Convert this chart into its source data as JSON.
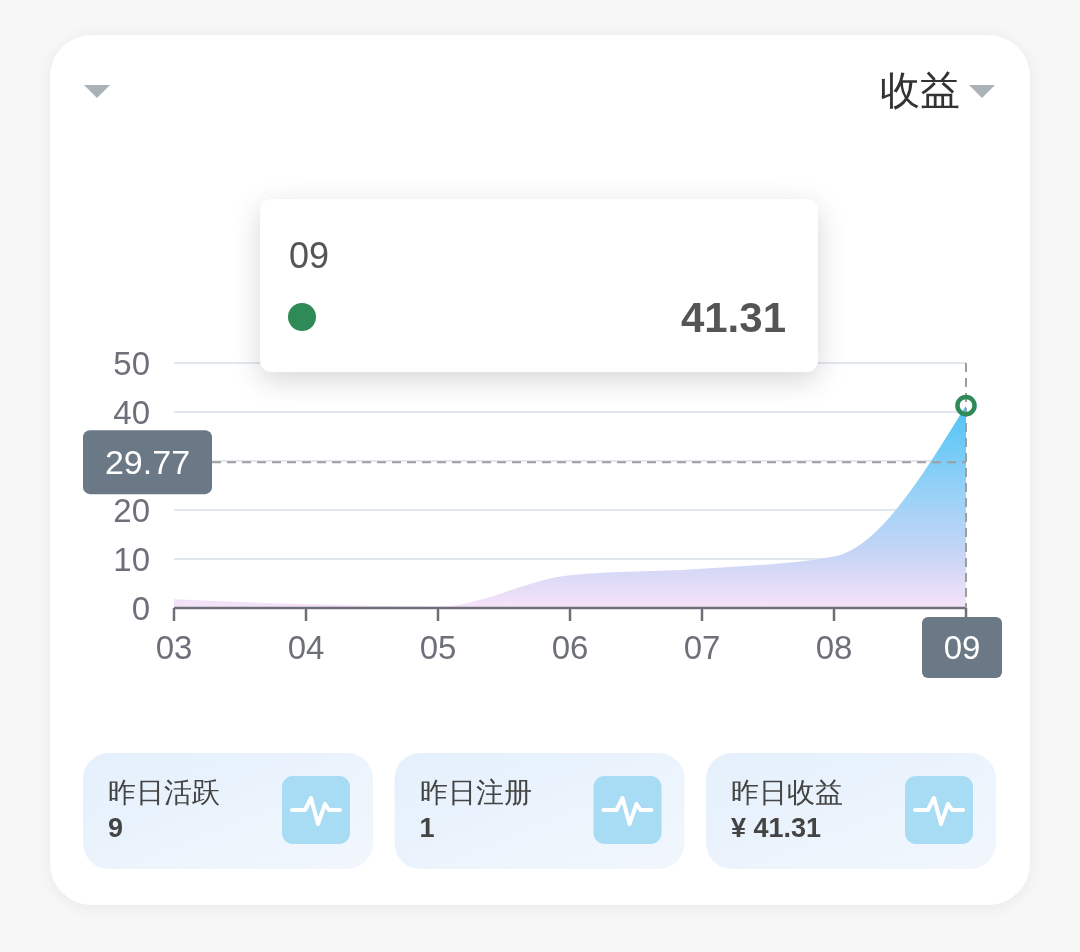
{
  "chart_data": {
    "type": "area",
    "subtitle": "收益",
    "categories": [
      "03",
      "04",
      "05",
      "06",
      "07",
      "08",
      "09"
    ],
    "series": [
      {
        "color": "#4fc4f6",
        "values": [
          1.8,
          0.8,
          0.3,
          6.7,
          8.0,
          10.5,
          41.31
        ]
      },
      {
        "type": "scatter",
        "color": "#2e8b57",
        "x": [
          "09"
        ],
        "values": [
          41.31
        ],
        "marker": "circle"
      }
    ],
    "ylim": [
      0,
      50
    ],
    "yticks": [
      0,
      10,
      20,
      {
        "value": 30,
        "label": null
      },
      40,
      50
    ],
    "grid": "y",
    "ref_lines": [
      {
        "axis": "x",
        "value": "09",
        "line_style": "dashed",
        "color": "#9e9e9e"
      },
      {
        "axis": "y",
        "value": 29.77,
        "label": "29.77",
        "line_style": "dashed",
        "color": "#9e9e9e"
      }
    ],
    "annotations": [
      "41.31",
      "昨日活跃",
      "9",
      "昨日注册",
      "1",
      "昨日收益",
      "¥ 41.31"
    ]
  }
}
